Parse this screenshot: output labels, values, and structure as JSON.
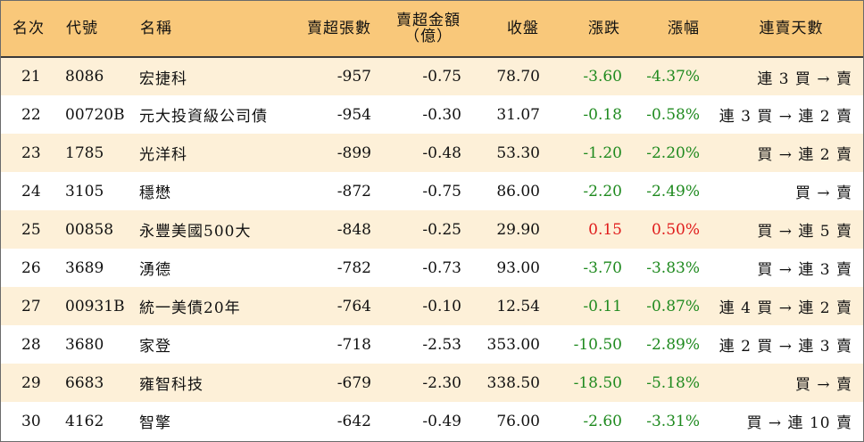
{
  "headers": {
    "rank": "名次",
    "code": "代號",
    "name": "名稱",
    "net_sell_volume": "賣超張數",
    "net_sell_amount_line1": "賣超金額",
    "net_sell_amount_line2": "（億）",
    "close": "收盤",
    "change": "漲跌",
    "change_pct": "漲幅",
    "consecutive_days": "連賣天數"
  },
  "colors": {
    "header_bg": "#f9c87a",
    "stripe_bg": "#fdf0d8",
    "down": "#1f8a1f",
    "up": "#e01b1b"
  },
  "rows": [
    {
      "rank": "21",
      "code": "8086",
      "name": "宏捷科",
      "volume": "-957",
      "amount": "-0.75",
      "close": "78.70",
      "change": "-3.60",
      "pct": "-4.37%",
      "days": "連 3 買 → 賣",
      "dir": "down"
    },
    {
      "rank": "22",
      "code": "00720B",
      "name": "元大投資級公司債",
      "volume": "-954",
      "amount": "-0.30",
      "close": "31.07",
      "change": "-0.18",
      "pct": "-0.58%",
      "days": "連 3 買 → 連 2 賣",
      "dir": "down"
    },
    {
      "rank": "23",
      "code": "1785",
      "name": "光洋科",
      "volume": "-899",
      "amount": "-0.48",
      "close": "53.30",
      "change": "-1.20",
      "pct": "-2.20%",
      "days": "買 → 連 2 賣",
      "dir": "down"
    },
    {
      "rank": "24",
      "code": "3105",
      "name": "穩懋",
      "volume": "-872",
      "amount": "-0.75",
      "close": "86.00",
      "change": "-2.20",
      "pct": "-2.49%",
      "days": "買 → 賣",
      "dir": "down"
    },
    {
      "rank": "25",
      "code": "00858",
      "name": "永豐美國500大",
      "volume": "-848",
      "amount": "-0.25",
      "close": "29.90",
      "change": "0.15",
      "pct": "0.50%",
      "days": "買 → 連 5 賣",
      "dir": "up"
    },
    {
      "rank": "26",
      "code": "3689",
      "name": "湧德",
      "volume": "-782",
      "amount": "-0.73",
      "close": "93.00",
      "change": "-3.70",
      "pct": "-3.83%",
      "days": "買 → 連 3 賣",
      "dir": "down"
    },
    {
      "rank": "27",
      "code": "00931B",
      "name": "統一美債20年",
      "volume": "-764",
      "amount": "-0.10",
      "close": "12.54",
      "change": "-0.11",
      "pct": "-0.87%",
      "days": "連 4 買 → 連 2 賣",
      "dir": "down"
    },
    {
      "rank": "28",
      "code": "3680",
      "name": "家登",
      "volume": "-718",
      "amount": "-2.53",
      "close": "353.00",
      "change": "-10.50",
      "pct": "-2.89%",
      "days": "連 2 買 → 連 3 賣",
      "dir": "down"
    },
    {
      "rank": "29",
      "code": "6683",
      "name": "雍智科技",
      "volume": "-679",
      "amount": "-2.30",
      "close": "338.50",
      "change": "-18.50",
      "pct": "-5.18%",
      "days": "買 → 賣",
      "dir": "down"
    },
    {
      "rank": "30",
      "code": "4162",
      "name": "智擎",
      "volume": "-642",
      "amount": "-0.49",
      "close": "76.00",
      "change": "-2.60",
      "pct": "-3.31%",
      "days": "買 → 連 10 賣",
      "dir": "down"
    }
  ]
}
